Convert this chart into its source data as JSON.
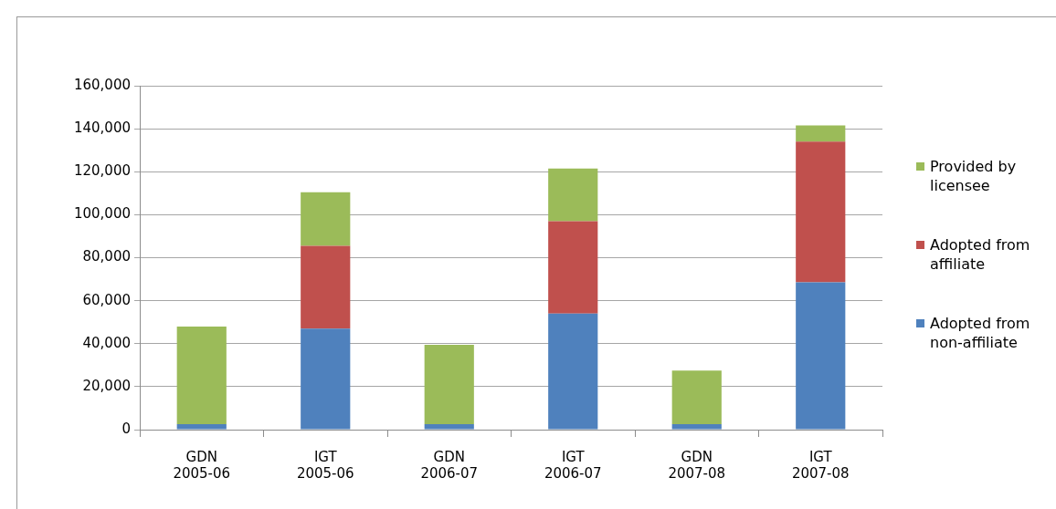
{
  "chart_data": {
    "type": "bar",
    "stacked": true,
    "categories": [
      "GDN 2005-06",
      "IGT 2005-06",
      "GDN 2006-07",
      "IGT 2006-07",
      "GDN 2007-08",
      "IGT 2007-08"
    ],
    "series": [
      {
        "name": "Adopted from non-affiliate",
        "color": "#4f81bd",
        "values": [
          2500,
          47000,
          2500,
          54000,
          2500,
          68500
        ]
      },
      {
        "name": "Adopted from affiliate",
        "color": "#c0504d",
        "values": [
          0,
          38500,
          0,
          43000,
          0,
          65500
        ]
      },
      {
        "name": "Provided by licensee",
        "color": "#9bbb59",
        "values": [
          45500,
          25000,
          37000,
          24500,
          25000,
          7500
        ]
      }
    ],
    "ylim": [
      0,
      160000
    ],
    "yticks": [
      0,
      {
        "value": 20000,
        "label": "20,000"
      },
      {
        "value": 40000,
        "label": "40,000"
      },
      {
        "value": 60000,
        "label": "60,000"
      },
      {
        "value": 80000,
        "label": "80,000"
      },
      {
        "value": 100000,
        "label": "100,000"
      },
      {
        "value": 120000,
        "label": "120,000"
      },
      {
        "value": 140000,
        "label": "140,000"
      },
      {
        "value": 160000,
        "label": "160,000"
      }
    ],
    "grid": "y",
    "legend": "right"
  }
}
